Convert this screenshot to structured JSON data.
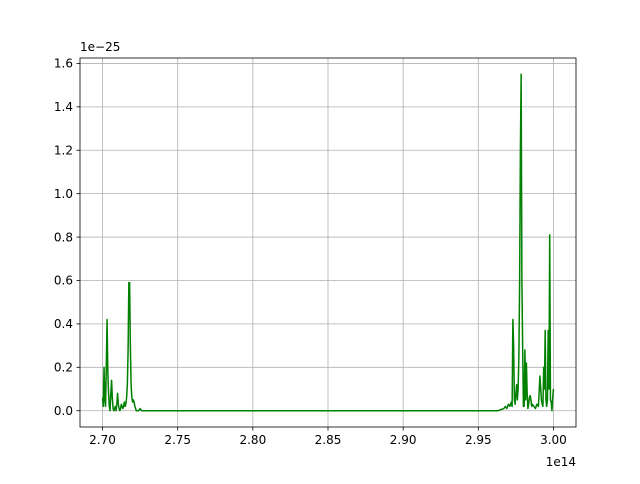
{
  "chart_data": {
    "type": "line",
    "title": "",
    "xlabel": "",
    "ylabel": "",
    "x_offset_text": "1e14",
    "y_offset_text": "1e−25",
    "xlim": [
      2.685,
      3.015
    ],
    "ylim": [
      -0.075,
      1.625
    ],
    "x_ticks": [
      2.7,
      2.75,
      2.8,
      2.85,
      2.9,
      2.95,
      3.0
    ],
    "x_tick_labels": [
      "2.70",
      "2.75",
      "2.80",
      "2.85",
      "2.90",
      "2.95",
      "3.00"
    ],
    "y_ticks": [
      0.0,
      0.2,
      0.4,
      0.6,
      0.8,
      1.0,
      1.2,
      1.4,
      1.6
    ],
    "y_tick_labels": [
      "0.0",
      "0.2",
      "0.4",
      "0.6",
      "0.8",
      "1.0",
      "1.2",
      "1.4",
      "1.6"
    ],
    "grid": true,
    "series": [
      {
        "color": "#008000",
        "x": [
          2.7,
          2.7005,
          2.701,
          2.7015,
          2.702,
          2.7025,
          2.703,
          2.7035,
          2.704,
          2.7045,
          2.705,
          2.7055,
          2.706,
          2.7065,
          2.707,
          2.7075,
          2.708,
          2.7085,
          2.709,
          2.7095,
          2.71,
          2.7105,
          2.711,
          2.7115,
          2.712,
          2.7125,
          2.713,
          2.7135,
          2.714,
          2.7145,
          2.715,
          2.7155,
          2.716,
          2.7165,
          2.717,
          2.7175,
          2.718,
          2.7185,
          2.719,
          2.7195,
          2.72,
          2.7205,
          2.721,
          2.7215,
          2.722,
          2.7225,
          2.723,
          2.724,
          2.725,
          2.726,
          2.727,
          2.728,
          2.73,
          2.75,
          2.8,
          2.85,
          2.9,
          2.95,
          2.96,
          2.963,
          2.965,
          2.967,
          2.968,
          2.969,
          2.97,
          2.971,
          2.972,
          2.9725,
          2.973,
          2.9735,
          2.974,
          2.9745,
          2.975,
          2.9755,
          2.976,
          2.9765,
          2.977,
          2.9775,
          2.978,
          2.9785,
          2.979,
          2.9795,
          2.98,
          2.9805,
          2.981,
          2.9815,
          2.982,
          2.9825,
          2.983,
          2.9835,
          2.984,
          2.9845,
          2.985,
          2.9855,
          2.986,
          2.987,
          2.988,
          2.989,
          2.99,
          2.991,
          2.992,
          2.9925,
          2.993,
          2.9935,
          2.994,
          2.9945,
          2.995,
          2.9955,
          2.996,
          2.9965,
          2.997,
          2.9975,
          2.998,
          2.9985,
          2.999,
          2.9995,
          3.0
        ],
        "y": [
          0.06,
          0.02,
          0.2,
          0.05,
          0.02,
          0.2,
          0.42,
          0.18,
          0.08,
          0.02,
          0.0,
          0.08,
          0.14,
          0.06,
          0.01,
          0.0,
          0.01,
          0.02,
          0.0,
          0.03,
          0.08,
          0.03,
          0.01,
          0.0,
          0.01,
          0.03,
          0.02,
          0.01,
          0.02,
          0.04,
          0.02,
          0.03,
          0.06,
          0.12,
          0.28,
          0.59,
          0.59,
          0.3,
          0.12,
          0.06,
          0.04,
          0.05,
          0.04,
          0.02,
          0.01,
          0.0,
          0.0,
          0.0,
          0.01,
          0.0,
          0.0,
          0.0,
          0.0,
          0.0,
          0.0,
          0.0,
          0.0,
          0.0,
          0.0,
          0.0,
          0.005,
          0.01,
          0.02,
          0.01,
          0.03,
          0.02,
          0.04,
          0.02,
          0.42,
          0.3,
          0.05,
          0.03,
          0.08,
          0.12,
          0.05,
          0.1,
          0.25,
          0.6,
          1.2,
          1.55,
          0.6,
          0.3,
          0.02,
          0.02,
          0.28,
          0.05,
          0.22,
          0.08,
          0.01,
          0.03,
          0.06,
          0.07,
          0.05,
          0.02,
          0.03,
          0.02,
          0.01,
          0.03,
          0.02,
          0.16,
          0.05,
          0.03,
          0.02,
          0.2,
          0.1,
          0.37,
          0.05,
          0.02,
          0.05,
          0.37,
          0.1,
          0.81,
          0.05,
          0.04,
          0.0,
          0.06,
          0.1
        ]
      }
    ]
  }
}
